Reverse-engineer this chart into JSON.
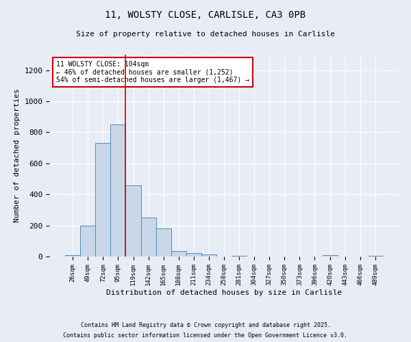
{
  "title1": "11, WOLSTY CLOSE, CARLISLE, CA3 0PB",
  "title2": "Size of property relative to detached houses in Carlisle",
  "xlabel": "Distribution of detached houses by size in Carlisle",
  "ylabel": "Number of detached properties",
  "categories": [
    "26sqm",
    "49sqm",
    "72sqm",
    "95sqm",
    "119sqm",
    "142sqm",
    "165sqm",
    "188sqm",
    "211sqm",
    "234sqm",
    "258sqm",
    "281sqm",
    "304sqm",
    "327sqm",
    "350sqm",
    "373sqm",
    "396sqm",
    "420sqm",
    "443sqm",
    "466sqm",
    "489sqm"
  ],
  "bar_values": [
    10,
    200,
    730,
    850,
    460,
    250,
    180,
    35,
    20,
    15,
    0,
    5,
    0,
    0,
    0,
    0,
    0,
    8,
    0,
    0,
    5
  ],
  "bar_color": "#c8d8e8",
  "bar_edge_color": "#5588bb",
  "vline_x": 3.5,
  "vline_color": "#cc0000",
  "annotation_text": "11 WOLSTY CLOSE: 104sqm\n← 46% of detached houses are smaller (1,252)\n54% of semi-detached houses are larger (1,467) →",
  "annotation_box_color": "#ffffff",
  "annotation_box_edgecolor": "#cc0000",
  "ylim": [
    0,
    1300
  ],
  "yticks": [
    0,
    200,
    400,
    600,
    800,
    1000,
    1200
  ],
  "background_color": "#e8edf5",
  "footer1": "Contains HM Land Registry data © Crown copyright and database right 2025.",
  "footer2": "Contains public sector information licensed under the Open Government Licence v3.0."
}
